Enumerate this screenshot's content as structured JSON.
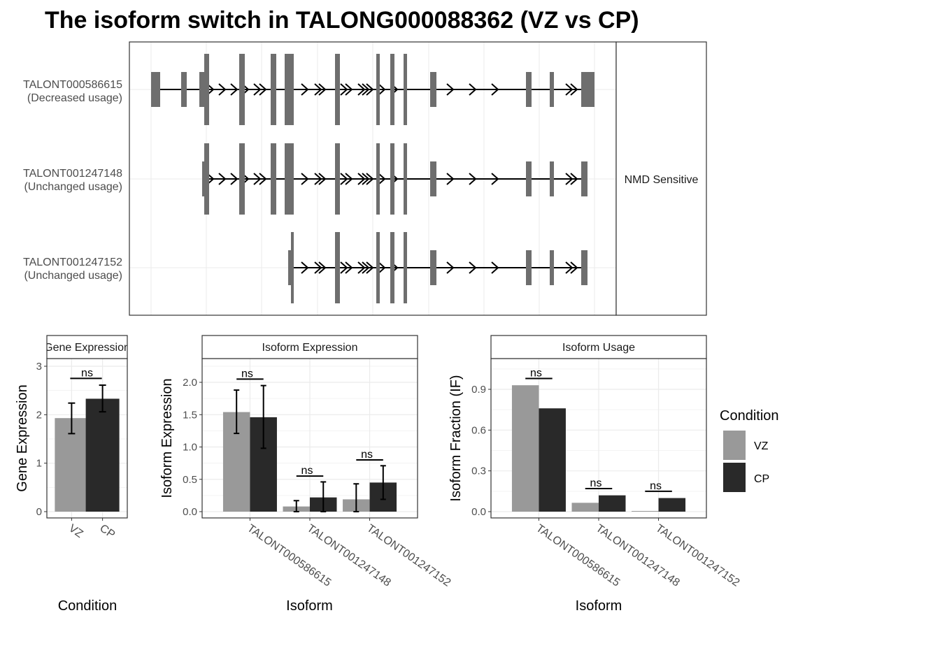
{
  "figure_title": "The isoform switch in TALONG000088362 (VZ vs CP)",
  "colors": {
    "VZ": "#999999",
    "CP": "#292929",
    "exon": "#6e6e6e",
    "grid": "#ebebeb",
    "panel_border": "#333333"
  },
  "structure": {
    "side_strip": "NMD Sensitive",
    "transcripts": [
      {
        "id": "TALONT000586615",
        "usage": "(Decreased usage)"
      },
      {
        "id": "TALONT001247148",
        "usage": "(Unchanged usage)"
      },
      {
        "id": "TALONT001247152",
        "usage": "(Unchanged usage)"
      }
    ]
  },
  "legend": {
    "title": "Condition",
    "items": [
      {
        "label": "VZ",
        "color": "#999999"
      },
      {
        "label": "CP",
        "color": "#292929"
      }
    ]
  },
  "chart_data": [
    {
      "type": "bar",
      "strip": "Gene Expression",
      "xlabel": "Condition",
      "ylabel": "Gene Expression",
      "ylim": [
        0,
        3.25
      ],
      "yticks": [
        "0",
        "1",
        "2",
        "3"
      ],
      "categories": [
        "VZ",
        "CP"
      ],
      "series": [
        {
          "name": "VZ",
          "values": [
            1.93,
            null
          ]
        },
        {
          "name": "CP",
          "values": [
            null,
            2.33
          ]
        }
      ],
      "errors": [
        [
          1.61,
          2.24
        ],
        [
          2.06,
          2.61
        ]
      ],
      "significance": [
        {
          "label": "ns",
          "y": 2.75
        }
      ]
    },
    {
      "type": "bar",
      "strip": "Isoform Expression",
      "xlabel": "Isoform",
      "ylabel": "Isoform Expression",
      "ylim": [
        0,
        2.3
      ],
      "yticks": [
        "0.0",
        "0.5",
        "1.0",
        "1.5",
        "2.0"
      ],
      "categories": [
        "TALONT000586615",
        "TALONT001247148",
        "TALONT001247152"
      ],
      "series": [
        {
          "name": "VZ",
          "values": [
            1.54,
            0.08,
            0.19
          ],
          "errors": [
            [
              1.21,
              1.88
            ],
            [
              0.0,
              0.17
            ],
            [
              0.0,
              0.43
            ]
          ]
        },
        {
          "name": "CP",
          "values": [
            1.46,
            0.22,
            0.45
          ],
          "errors": [
            [
              0.98,
              1.95
            ],
            [
              0.0,
              0.46
            ],
            [
              0.19,
              0.71
            ]
          ]
        }
      ],
      "significance": [
        {
          "label": "ns",
          "y": 2.05
        },
        {
          "label": "ns",
          "y": 0.55
        },
        {
          "label": "ns",
          "y": 0.8
        }
      ]
    },
    {
      "type": "bar",
      "strip": "Isoform Usage",
      "xlabel": "Isoform",
      "ylabel": "Isoform Fraction (IF)",
      "ylim": [
        0,
        1.15
      ],
      "yticks": [
        "0.0",
        "0.3",
        "0.6",
        "0.9"
      ],
      "categories": [
        "TALONT000586615",
        "TALONT001247148",
        "TALONT001247152"
      ],
      "series": [
        {
          "name": "VZ",
          "values": [
            0.93,
            0.065,
            0.005
          ]
        },
        {
          "name": "CP",
          "values": [
            0.76,
            0.12,
            0.1
          ]
        }
      ],
      "significance": [
        {
          "label": "ns",
          "y": 0.98
        },
        {
          "label": "ns",
          "y": 0.17
        },
        {
          "label": "ns",
          "y": 0.15
        }
      ]
    }
  ]
}
